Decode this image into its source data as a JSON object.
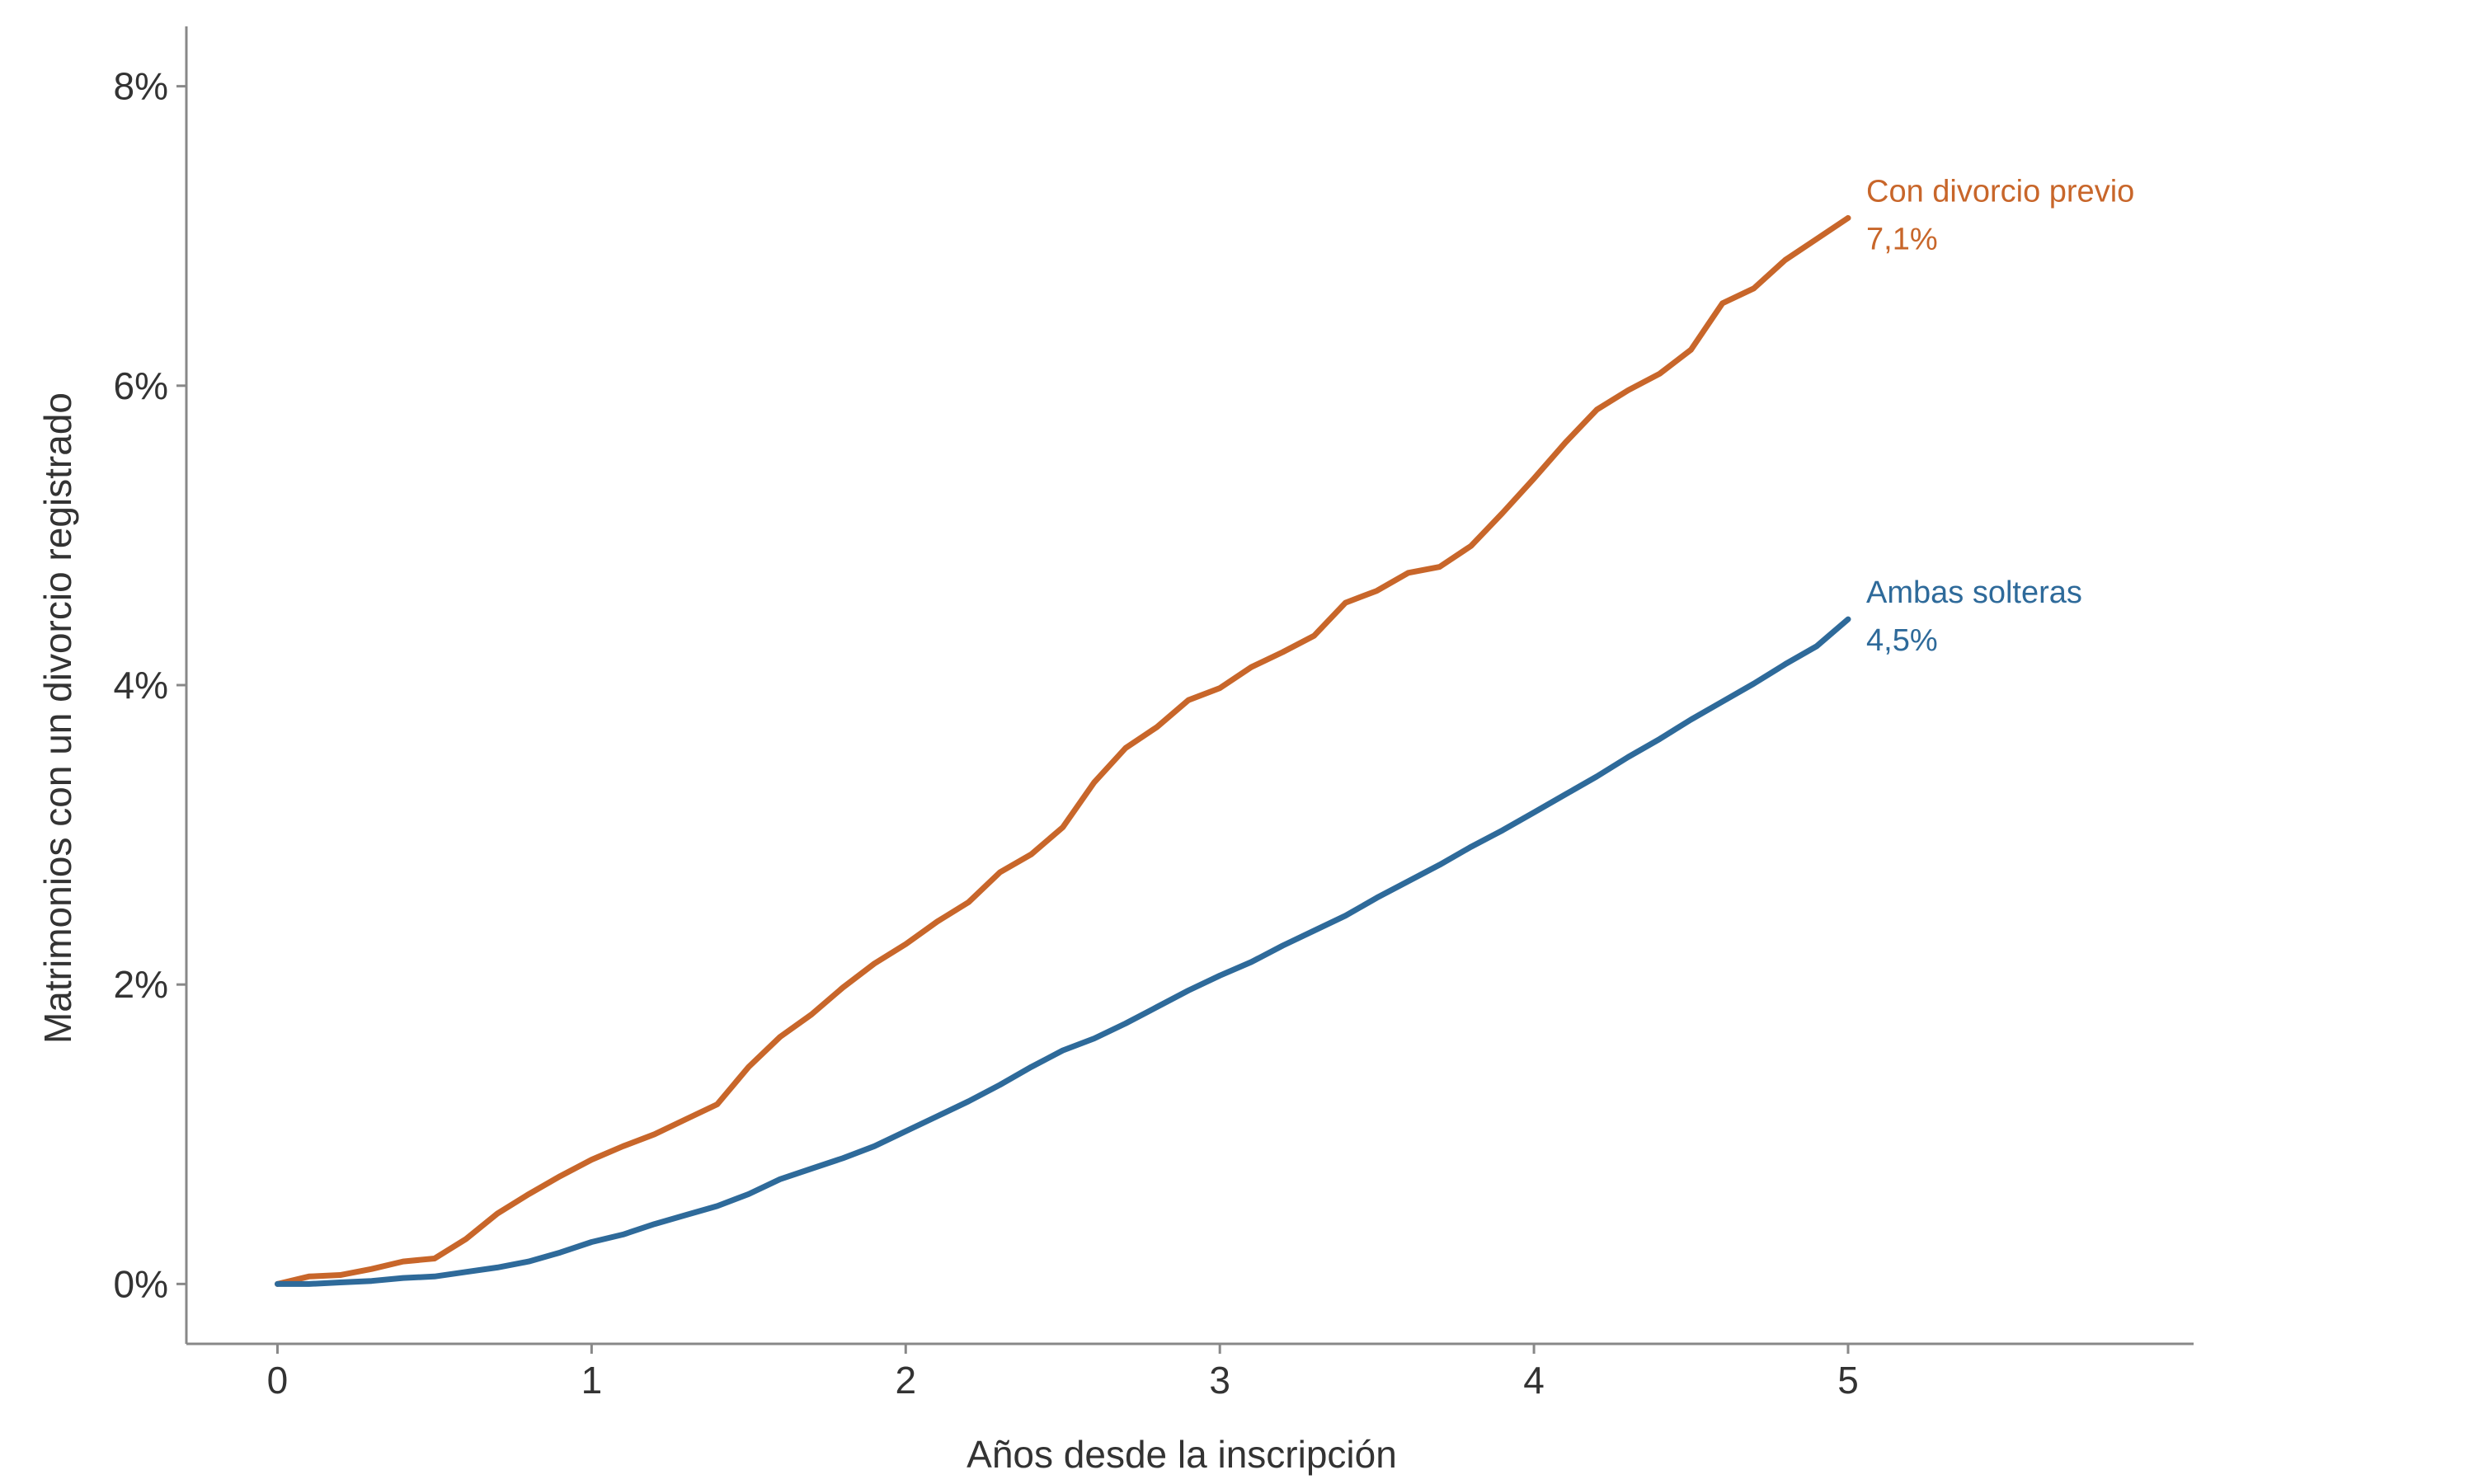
{
  "chart_data": {
    "type": "line",
    "title": "",
    "xlabel": "Años desde la inscripción",
    "ylabel": "Matrimonios con un divorcio registrado",
    "xlim": [
      -0.29,
      6.1
    ],
    "ylim": [
      -0.4,
      8.4
    ],
    "x_ticks": [
      "0",
      "1",
      "2",
      "3",
      "4",
      "5"
    ],
    "y_ticks": [
      "0%",
      "2%",
      "4%",
      "6%",
      "8%"
    ],
    "grid": false,
    "legend": "direct labels at line ends",
    "series": [
      {
        "name": "Con divorcio previo",
        "end_label": "7,1%",
        "color": "#C8662A",
        "x": [
          0,
          0.1,
          0.2,
          0.3,
          0.4,
          0.5,
          0.6,
          0.7,
          0.8,
          0.9,
          1.0,
          1.1,
          1.2,
          1.3,
          1.4,
          1.5,
          1.6,
          1.7,
          1.8,
          1.9,
          2.0,
          2.1,
          2.2,
          2.3,
          2.4,
          2.5,
          2.6,
          2.7,
          2.8,
          2.9,
          3.0,
          3.1,
          3.2,
          3.3,
          3.4,
          3.5,
          3.6,
          3.7,
          3.8,
          3.9,
          4.0,
          4.1,
          4.2,
          4.3,
          4.4,
          4.5,
          4.6,
          4.7,
          4.8,
          4.9,
          5.0
        ],
        "y": [
          0,
          0.05,
          0.06,
          0.1,
          0.15,
          0.17,
          0.3,
          0.47,
          0.6,
          0.72,
          0.83,
          0.92,
          1.0,
          1.1,
          1.2,
          1.45,
          1.65,
          1.8,
          1.98,
          2.14,
          2.27,
          2.42,
          2.55,
          2.75,
          2.87,
          3.05,
          3.35,
          3.58,
          3.72,
          3.9,
          3.98,
          4.12,
          4.22,
          4.33,
          4.55,
          4.63,
          4.75,
          4.79,
          4.93,
          5.15,
          5.38,
          5.62,
          5.84,
          5.97,
          6.08,
          6.24,
          6.55,
          6.65,
          6.84,
          6.98,
          7.12
        ]
      },
      {
        "name": "Ambas solteras",
        "end_label": "4,5%",
        "color": "#2E6A9A",
        "x": [
          0,
          0.1,
          0.2,
          0.3,
          0.4,
          0.5,
          0.6,
          0.7,
          0.8,
          0.9,
          1.0,
          1.1,
          1.2,
          1.3,
          1.4,
          1.5,
          1.6,
          1.7,
          1.8,
          1.9,
          2.0,
          2.1,
          2.2,
          2.3,
          2.4,
          2.5,
          2.6,
          2.7,
          2.8,
          2.9,
          3.0,
          3.1,
          3.2,
          3.3,
          3.4,
          3.5,
          3.6,
          3.7,
          3.8,
          3.9,
          4.0,
          4.1,
          4.2,
          4.3,
          4.4,
          4.5,
          4.6,
          4.7,
          4.8,
          4.9,
          5.0
        ],
        "y": [
          0,
          0,
          0.01,
          0.02,
          0.04,
          0.05,
          0.08,
          0.11,
          0.15,
          0.21,
          0.28,
          0.33,
          0.4,
          0.46,
          0.52,
          0.6,
          0.7,
          0.77,
          0.84,
          0.92,
          1.02,
          1.12,
          1.22,
          1.33,
          1.45,
          1.56,
          1.64,
          1.74,
          1.85,
          1.96,
          2.06,
          2.15,
          2.26,
          2.36,
          2.46,
          2.58,
          2.69,
          2.8,
          2.92,
          3.03,
          3.15,
          3.27,
          3.39,
          3.52,
          3.64,
          3.77,
          3.89,
          4.01,
          4.14,
          4.26,
          4.44
        ]
      }
    ]
  }
}
